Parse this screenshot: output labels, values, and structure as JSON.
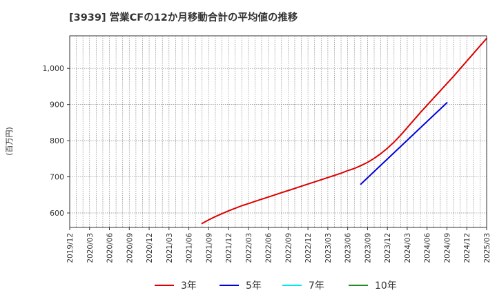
{
  "chart_data": {
    "type": "line",
    "title": "[3939]  営業CFの12か月移動合計の平均値の推移",
    "ylabel": "(百万円)",
    "xlabel": "",
    "ylim": [
      560,
      1090
    ],
    "yticks": [
      600,
      700,
      800,
      900,
      1000
    ],
    "ytick_labels": [
      "600",
      "700",
      "800",
      "900",
      "1,000"
    ],
    "xticks": [
      "2019/12",
      "2020/03",
      "2020/06",
      "2020/09",
      "2020/12",
      "2021/03",
      "2021/06",
      "2021/09",
      "2021/12",
      "2022/03",
      "2022/06",
      "2022/09",
      "2022/12",
      "2023/03",
      "2023/06",
      "2023/09",
      "2023/12",
      "2024/03",
      "2024/06",
      "2024/09",
      "2024/12",
      "2025/03"
    ],
    "grid": true,
    "legend_position": "bottom",
    "series": [
      {
        "name": "3年",
        "color": "#dd0000",
        "points": [
          [
            "2021/08",
            571
          ],
          [
            "2021/09",
            581
          ],
          [
            "2021/10",
            590
          ],
          [
            "2021/11",
            598
          ],
          [
            "2021/12",
            606
          ],
          [
            "2022/01",
            613
          ],
          [
            "2022/02",
            620
          ],
          [
            "2022/03",
            626
          ],
          [
            "2022/04",
            632
          ],
          [
            "2022/05",
            638
          ],
          [
            "2022/06",
            644
          ],
          [
            "2022/07",
            650
          ],
          [
            "2022/08",
            656
          ],
          [
            "2022/09",
            662
          ],
          [
            "2022/10",
            668
          ],
          [
            "2022/11",
            674
          ],
          [
            "2022/12",
            680
          ],
          [
            "2023/01",
            686
          ],
          [
            "2023/02",
            692
          ],
          [
            "2023/03",
            698
          ],
          [
            "2023/04",
            704
          ],
          [
            "2023/05",
            710
          ],
          [
            "2023/06",
            717
          ],
          [
            "2023/07",
            723
          ],
          [
            "2023/08",
            731
          ],
          [
            "2023/09",
            740
          ],
          [
            "2023/10",
            751
          ],
          [
            "2023/11",
            764
          ],
          [
            "2023/12",
            779
          ],
          [
            "2024/01",
            796
          ],
          [
            "2024/02",
            815
          ],
          [
            "2024/03",
            836
          ],
          [
            "2024/04",
            857
          ],
          [
            "2024/05",
            878
          ],
          [
            "2024/06",
            898
          ],
          [
            "2024/07",
            918
          ],
          [
            "2024/08",
            938
          ],
          [
            "2024/09",
            958
          ],
          [
            "2024/10",
            978
          ],
          [
            "2024/11",
            999
          ],
          [
            "2024/12",
            1020
          ],
          [
            "2025/01",
            1041
          ],
          [
            "2025/02",
            1062
          ],
          [
            "2025/03",
            1083
          ]
        ]
      },
      {
        "name": "5年",
        "color": "#0000dd",
        "points": [
          [
            "2023/08",
            680
          ],
          [
            "2024/09",
            905
          ]
        ]
      },
      {
        "name": "7年",
        "color": "#00e5ee",
        "points": []
      },
      {
        "name": "10年",
        "color": "#228b22",
        "points": []
      }
    ]
  }
}
